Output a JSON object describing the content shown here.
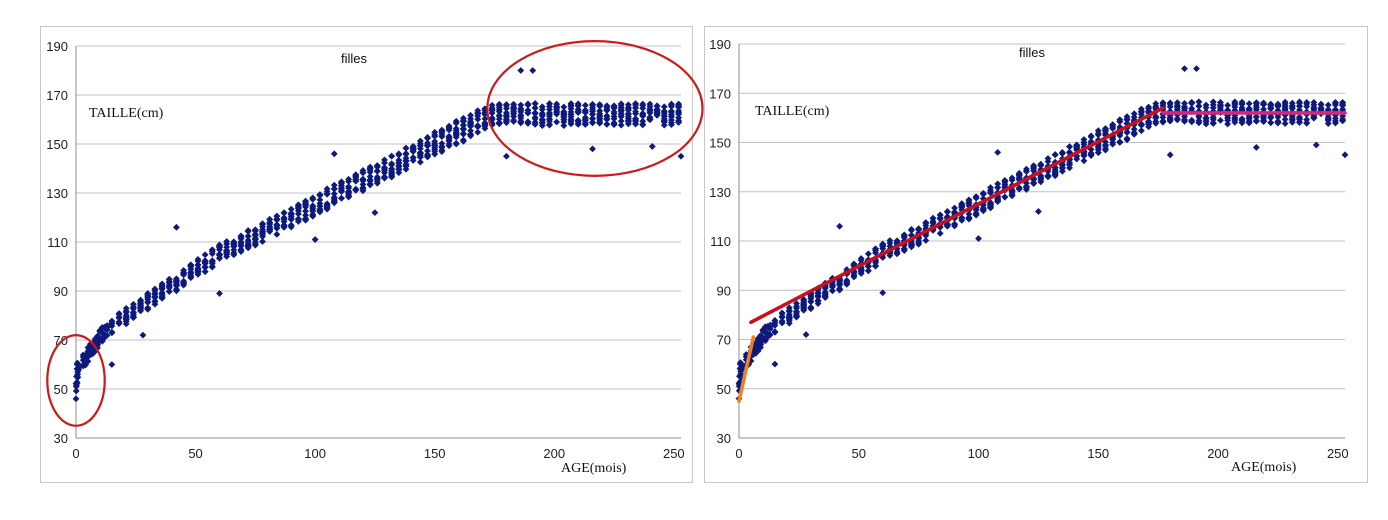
{
  "colors": {
    "points": "#0d1a7c",
    "grid": "#c0c0c0",
    "axis": "#8c8c8c",
    "circle": "#cc1a1a",
    "fit_infant": "#f08020",
    "fit_child": "#c8101e",
    "fit_adult": "#d2287c"
  },
  "chart_data": [
    {
      "type": "scatter",
      "title": "filles",
      "xlabel": "AGE(mois)",
      "ylabel": "TAILLE(cm)",
      "xlim": [
        0,
        253
      ],
      "ylim": [
        30,
        190
      ],
      "xticks": [
        0,
        50,
        100,
        150,
        200,
        250
      ],
      "yticks": [
        30,
        50,
        70,
        90,
        110,
        130,
        150,
        170,
        190
      ],
      "grid": "horizontal",
      "marker": "diamond",
      "point_color": "#0d1a7c",
      "annotations": [
        {
          "shape": "ellipse",
          "region": "infancy",
          "x_range": [
            -12,
            12
          ],
          "y_range": [
            35,
            72
          ],
          "color": "#cc1a1a"
        },
        {
          "shape": "ellipse",
          "region": "adult plateau",
          "x_range": [
            172,
            262
          ],
          "y_range": [
            137,
            192
          ],
          "color": "#cc1a1a"
        }
      ],
      "outliers": [
        [
          42,
          116
        ],
        [
          60,
          89
        ],
        [
          108,
          146
        ],
        [
          100,
          111
        ],
        [
          125,
          122
        ],
        [
          180,
          145
        ],
        [
          186,
          180
        ],
        [
          191,
          180
        ],
        [
          216,
          148
        ],
        [
          241,
          149
        ],
        [
          253,
          145
        ],
        [
          28,
          72
        ],
        [
          15,
          60
        ]
      ],
      "points": []
    },
    {
      "type": "scatter",
      "title": "filles",
      "xlabel": "AGE(mois)",
      "ylabel": "TAILLE(cm)",
      "xlim": [
        0,
        253
      ],
      "ylim": [
        30,
        190
      ],
      "xticks": [
        0,
        50,
        100,
        150,
        200,
        250
      ],
      "yticks": [
        30,
        50,
        70,
        90,
        110,
        130,
        150,
        170,
        190
      ],
      "grid": "horizontal",
      "marker": "diamond",
      "point_color": "#0d1a7c",
      "fit_lines": [
        {
          "segment": "infant",
          "from": [
            0,
            45
          ],
          "to": [
            6,
            71
          ],
          "color": "#f08020"
        },
        {
          "segment": "childhood",
          "from": [
            5,
            77
          ],
          "to": [
            177,
            164
          ],
          "color": "#c8101e"
        },
        {
          "segment": "adult",
          "from": [
            177,
            162
          ],
          "to": [
            253,
            162
          ],
          "color": "#d2287c"
        }
      ],
      "points": []
    }
  ]
}
